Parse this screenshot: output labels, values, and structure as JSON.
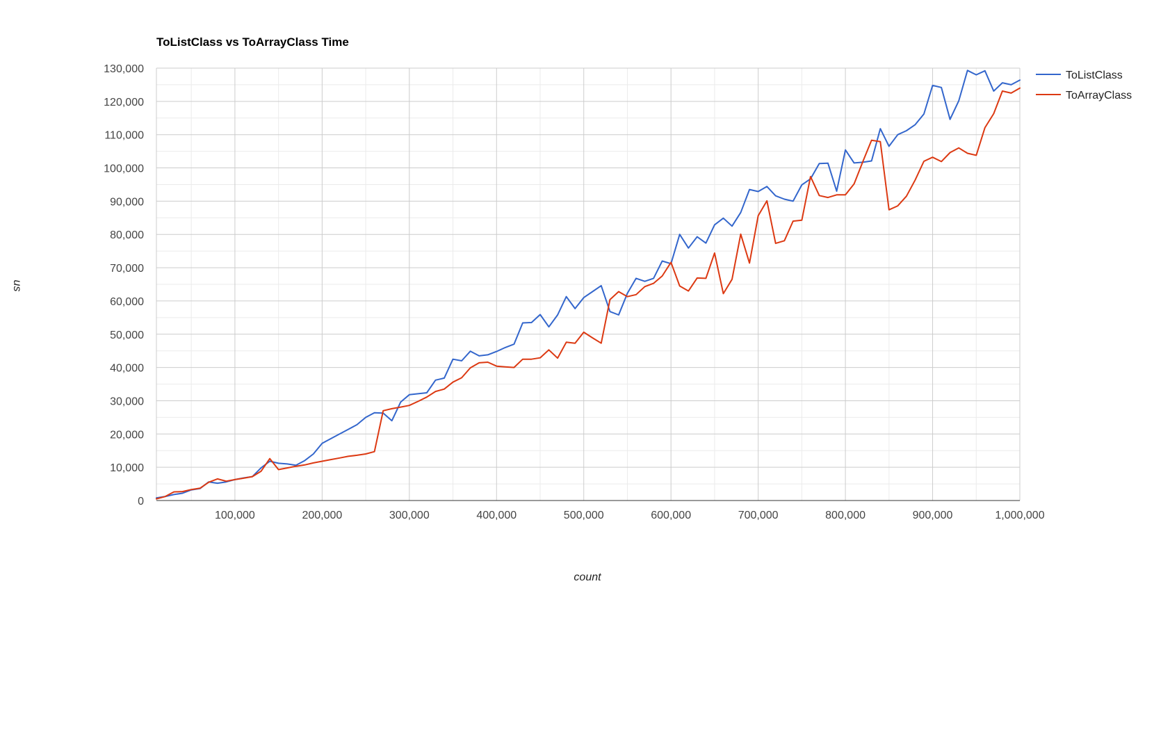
{
  "chart_data": {
    "type": "line",
    "title": "ToListClass vs ToArrayClass Time",
    "xlabel": "count",
    "ylabel": "us",
    "xlim": [
      10000,
      1000000
    ],
    "ylim": [
      0,
      130000
    ],
    "x_ticks": [
      100000,
      200000,
      300000,
      400000,
      500000,
      600000,
      700000,
      800000,
      900000,
      1000000
    ],
    "x_tick_labels": [
      "100,000",
      "200,000",
      "300,000",
      "400,000",
      "500,000",
      "600,000",
      "700,000",
      "800,000",
      "900,000",
      "1,000,000"
    ],
    "y_ticks": [
      0,
      10000,
      20000,
      30000,
      40000,
      50000,
      60000,
      70000,
      80000,
      90000,
      100000,
      110000,
      120000,
      130000
    ],
    "y_tick_labels": [
      "0",
      "10,000",
      "20,000",
      "30,000",
      "40,000",
      "50,000",
      "60,000",
      "70,000",
      "80,000",
      "90,000",
      "100,000",
      "110,000",
      "120,000",
      "130,000"
    ],
    "grid": true,
    "legend_position": "right",
    "x": [
      10000,
      20000,
      30000,
      40000,
      50000,
      60000,
      70000,
      80000,
      90000,
      100000,
      110000,
      120000,
      130000,
      140000,
      150000,
      160000,
      170000,
      180000,
      190000,
      200000,
      210000,
      220000,
      230000,
      240000,
      250000,
      260000,
      270000,
      280000,
      290000,
      300000,
      310000,
      320000,
      330000,
      340000,
      350000,
      360000,
      370000,
      380000,
      390000,
      400000,
      410000,
      420000,
      430000,
      440000,
      450000,
      460000,
      470000,
      480000,
      490000,
      500000,
      510000,
      520000,
      530000,
      540000,
      550000,
      560000,
      570000,
      580000,
      590000,
      600000,
      610000,
      620000,
      630000,
      640000,
      650000,
      660000,
      670000,
      680000,
      690000,
      700000,
      710000,
      720000,
      730000,
      740000,
      750000,
      760000,
      770000,
      780000,
      790000,
      800000,
      810000,
      820000,
      830000,
      840000,
      850000,
      860000,
      870000,
      880000,
      890000,
      900000,
      910000,
      920000,
      930000,
      940000,
      950000,
      960000,
      970000,
      980000,
      990000,
      1000000
    ],
    "series": [
      {
        "name": "ToListClass",
        "color": "#3366cc",
        "values": [
          800,
          1200,
          1800,
          2200,
          3200,
          3600,
          5600,
          5200,
          5600,
          6300,
          6800,
          7200,
          9800,
          11800,
          11200,
          11000,
          10600,
          12000,
          14000,
          17200,
          18600,
          20000,
          21400,
          22800,
          25000,
          26400,
          26300,
          24000,
          29600,
          31800,
          32100,
          32400,
          36200,
          36800,
          42500,
          42000,
          44900,
          43500,
          43800,
          44800,
          46000,
          47000,
          53400,
          53500,
          55900,
          52200,
          55800,
          61300,
          57700,
          61000,
          62800,
          64600,
          56800,
          55800,
          62300,
          66800,
          65900,
          66800,
          72000,
          71200,
          80000,
          75900,
          79300,
          77400,
          82900,
          84900,
          82500,
          86600,
          93500,
          92900,
          94400,
          91600,
          90600,
          90000,
          94900,
          96700,
          101300,
          101400,
          93000,
          105400,
          101500,
          101700,
          102100,
          111800,
          106500,
          110000,
          111200,
          113000,
          116200,
          124800,
          124200,
          114600,
          120200,
          129300,
          128000,
          129200,
          123100,
          125600,
          125000,
          126400
        ]
      },
      {
        "name": "ToArrayClass",
        "color": "#dc3912",
        "values": [
          500,
          1200,
          2600,
          2700,
          3300,
          3700,
          5500,
          6500,
          5800,
          6300,
          6700,
          7200,
          8800,
          12600,
          9300,
          9800,
          10300,
          10700,
          11300,
          11800,
          12300,
          12800,
          13300,
          13600,
          14000,
          14700,
          27000,
          27600,
          28100,
          28600,
          29800,
          31100,
          32800,
          33500,
          35600,
          36900,
          39900,
          41400,
          41600,
          40400,
          40200,
          40000,
          42500,
          42500,
          42900,
          45300,
          42800,
          47600,
          47300,
          50600,
          48900,
          47300,
          60400,
          62800,
          61300,
          61900,
          64300,
          65300,
          67500,
          71600,
          64500,
          63000,
          66900,
          66800,
          74400,
          62200,
          66500,
          80100,
          71400,
          85600,
          90100,
          77300,
          78100,
          84000,
          84300,
          97400,
          91700,
          91100,
          91900,
          91900,
          95200,
          101900,
          108300,
          107900,
          87400,
          88600,
          91500,
          96400,
          102000,
          103200,
          101900,
          104600,
          106000,
          104400,
          103800,
          112100,
          116300,
          123100,
          122500,
          124000
        ]
      }
    ]
  }
}
